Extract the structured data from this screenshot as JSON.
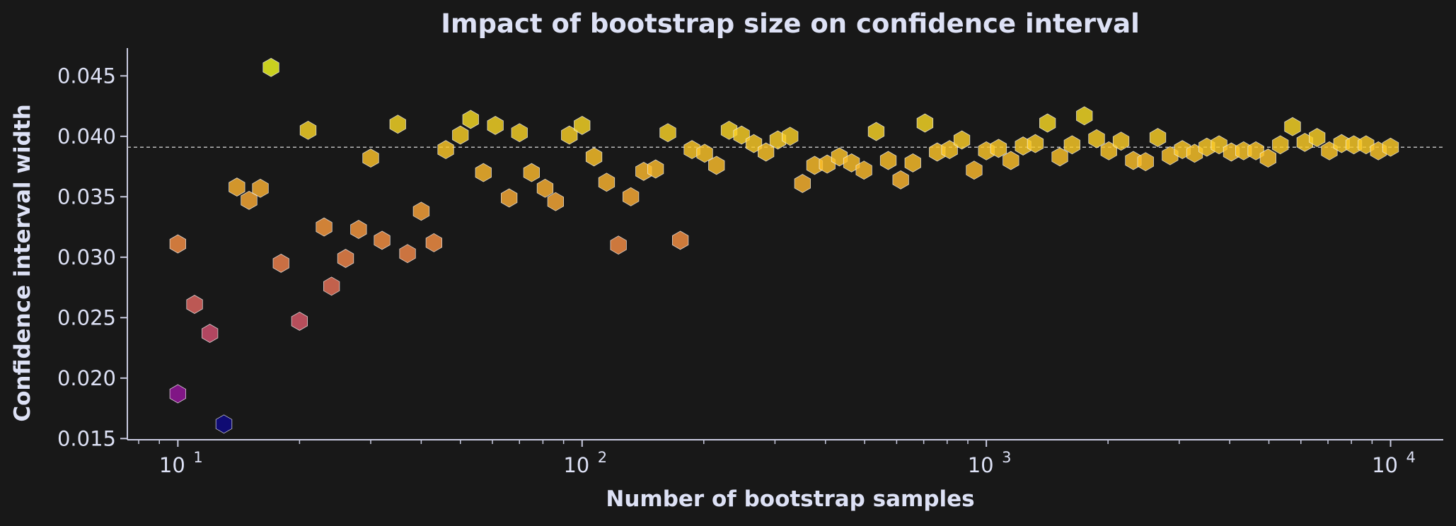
{
  "chart_data": {
    "type": "scatter",
    "title": "Impact of bootstrap size on confidence interval",
    "xlabel": "Number of bootstrap samples",
    "ylabel": "Confidence interval width",
    "xscale": "log",
    "xlim": [
      7.5,
      13500
    ],
    "ylim": [
      0.0149,
      0.0473
    ],
    "xticks": [
      10,
      100,
      1000,
      10000
    ],
    "xtick_labels": [
      {
        "base": "10",
        "exp": "1"
      },
      {
        "base": "10",
        "exp": "2"
      },
      {
        "base": "10",
        "exp": "3"
      },
      {
        "base": "10",
        "exp": "4"
      }
    ],
    "yticks": [
      0.015,
      0.02,
      0.025,
      0.03,
      0.035,
      0.04,
      0.045
    ],
    "ytick_labels": [
      "0.015",
      "0.020",
      "0.025",
      "0.030",
      "0.035",
      "0.040",
      "0.045"
    ],
    "reference_line": {
      "y": 0.0391,
      "style": "dashed",
      "color": "#bbbbbb"
    },
    "marker": "hexagon",
    "colormap": "plasma (by y value)",
    "grid": false,
    "legend": "none",
    "colors": {
      "background": "#181818",
      "text": "#dde1f5",
      "axis": "#c9cbe0"
    },
    "points": [
      {
        "x": 10,
        "y": 0.0311
      },
      {
        "x": 10,
        "y": 0.0187
      },
      {
        "x": 11,
        "y": 0.0261
      },
      {
        "x": 12,
        "y": 0.0237
      },
      {
        "x": 13,
        "y": 0.0162
      },
      {
        "x": 14,
        "y": 0.0358
      },
      {
        "x": 15,
        "y": 0.0347
      },
      {
        "x": 16,
        "y": 0.0357
      },
      {
        "x": 17,
        "y": 0.0457
      },
      {
        "x": 18,
        "y": 0.0295
      },
      {
        "x": 20,
        "y": 0.0247
      },
      {
        "x": 21,
        "y": 0.0405
      },
      {
        "x": 23,
        "y": 0.0325
      },
      {
        "x": 24,
        "y": 0.0276
      },
      {
        "x": 26,
        "y": 0.0299
      },
      {
        "x": 28,
        "y": 0.0323
      },
      {
        "x": 30,
        "y": 0.0382
      },
      {
        "x": 32,
        "y": 0.0314
      },
      {
        "x": 35,
        "y": 0.041
      },
      {
        "x": 37,
        "y": 0.0303
      },
      {
        "x": 40,
        "y": 0.0338
      },
      {
        "x": 43,
        "y": 0.0312
      },
      {
        "x": 46,
        "y": 0.0389
      },
      {
        "x": 50,
        "y": 0.0401
      },
      {
        "x": 53,
        "y": 0.0414
      },
      {
        "x": 57,
        "y": 0.037
      },
      {
        "x": 61,
        "y": 0.0409
      },
      {
        "x": 66,
        "y": 0.0349
      },
      {
        "x": 70,
        "y": 0.0403
      },
      {
        "x": 75,
        "y": 0.037
      },
      {
        "x": 81,
        "y": 0.0357
      },
      {
        "x": 86,
        "y": 0.0346
      },
      {
        "x": 93,
        "y": 0.0401
      },
      {
        "x": 100,
        "y": 0.0409
      },
      {
        "x": 107,
        "y": 0.0383
      },
      {
        "x": 115,
        "y": 0.0362
      },
      {
        "x": 123,
        "y": 0.031
      },
      {
        "x": 132,
        "y": 0.035
      },
      {
        "x": 142,
        "y": 0.0371
      },
      {
        "x": 152,
        "y": 0.0373
      },
      {
        "x": 163,
        "y": 0.0403
      },
      {
        "x": 175,
        "y": 0.0314
      },
      {
        "x": 187,
        "y": 0.0389
      },
      {
        "x": 201,
        "y": 0.0386
      },
      {
        "x": 215,
        "y": 0.0376
      },
      {
        "x": 231,
        "y": 0.0405
      },
      {
        "x": 248,
        "y": 0.0401
      },
      {
        "x": 266,
        "y": 0.0394
      },
      {
        "x": 285,
        "y": 0.0387
      },
      {
        "x": 305,
        "y": 0.0397
      },
      {
        "x": 327,
        "y": 0.04
      },
      {
        "x": 351,
        "y": 0.0361
      },
      {
        "x": 376,
        "y": 0.0376
      },
      {
        "x": 404,
        "y": 0.0377
      },
      {
        "x": 433,
        "y": 0.0383
      },
      {
        "x": 464,
        "y": 0.0378
      },
      {
        "x": 498,
        "y": 0.0372
      },
      {
        "x": 534,
        "y": 0.0404
      },
      {
        "x": 572,
        "y": 0.038
      },
      {
        "x": 614,
        "y": 0.0364
      },
      {
        "x": 658,
        "y": 0.0378
      },
      {
        "x": 705,
        "y": 0.0411
      },
      {
        "x": 756,
        "y": 0.0387
      },
      {
        "x": 811,
        "y": 0.0389
      },
      {
        "x": 870,
        "y": 0.0397
      },
      {
        "x": 933,
        "y": 0.0372
      },
      {
        "x": 1000,
        "y": 0.0388
      },
      {
        "x": 1072,
        "y": 0.039
      },
      {
        "x": 1150,
        "y": 0.038
      },
      {
        "x": 1233,
        "y": 0.0392
      },
      {
        "x": 1322,
        "y": 0.0394
      },
      {
        "x": 1417,
        "y": 0.0411
      },
      {
        "x": 1520,
        "y": 0.0383
      },
      {
        "x": 1630,
        "y": 0.0393
      },
      {
        "x": 1748,
        "y": 0.0417
      },
      {
        "x": 1874,
        "y": 0.0398
      },
      {
        "x": 2009,
        "y": 0.0388
      },
      {
        "x": 2154,
        "y": 0.0396
      },
      {
        "x": 2310,
        "y": 0.038
      },
      {
        "x": 2477,
        "y": 0.0379
      },
      {
        "x": 2656,
        "y": 0.0399
      },
      {
        "x": 2848,
        "y": 0.0384
      },
      {
        "x": 3054,
        "y": 0.0389
      },
      {
        "x": 3275,
        "y": 0.0386
      },
      {
        "x": 3511,
        "y": 0.0391
      },
      {
        "x": 3765,
        "y": 0.0393
      },
      {
        "x": 4037,
        "y": 0.0387
      },
      {
        "x": 4329,
        "y": 0.0388
      },
      {
        "x": 4642,
        "y": 0.0388
      },
      {
        "x": 4977,
        "y": 0.0382
      },
      {
        "x": 5337,
        "y": 0.0393
      },
      {
        "x": 5722,
        "y": 0.0408
      },
      {
        "x": 6136,
        "y": 0.0395
      },
      {
        "x": 6579,
        "y": 0.0399
      },
      {
        "x": 7055,
        "y": 0.0388
      },
      {
        "x": 7565,
        "y": 0.0394
      },
      {
        "x": 8111,
        "y": 0.0393
      },
      {
        "x": 8697,
        "y": 0.0393
      },
      {
        "x": 9326,
        "y": 0.0388
      },
      {
        "x": 10000,
        "y": 0.0391
      }
    ]
  }
}
